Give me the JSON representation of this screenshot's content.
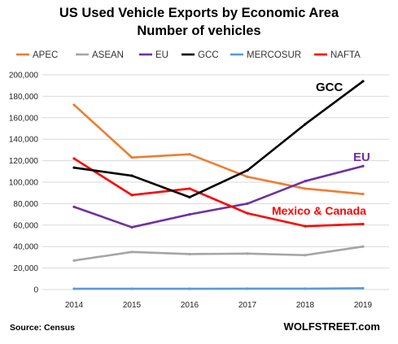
{
  "chart_data": {
    "type": "line",
    "title": "US Used Vehicle Exports by Economic Area",
    "subtitle": "Number of vehicles",
    "categories": [
      "2014",
      "2015",
      "2016",
      "2017",
      "2018",
      "2019"
    ],
    "ylim": [
      0,
      200000
    ],
    "yticks": [
      0,
      20000,
      40000,
      60000,
      80000,
      100000,
      120000,
      140000,
      160000,
      180000,
      200000
    ],
    "ytick_labels": [
      "0",
      "20,000",
      "40,000",
      "60,000",
      "80,000",
      "100,000",
      "120,000",
      "140,000",
      "160,000",
      "180,000",
      "200,000"
    ],
    "grid": true,
    "legend_position": "top",
    "series": [
      {
        "name": "APEC",
        "color": "#ED7D31",
        "values": [
          172000,
          123000,
          126000,
          105000,
          94000,
          89000
        ]
      },
      {
        "name": "ASEAN",
        "color": "#A5A5A5",
        "values": [
          27000,
          35000,
          33000,
          33500,
          32000,
          40000
        ]
      },
      {
        "name": "EU",
        "color": "#7030A0",
        "values": [
          77000,
          58000,
          70000,
          80000,
          101000,
          115000
        ]
      },
      {
        "name": "GCC",
        "color": "#000000",
        "values": [
          113500,
          106000,
          86000,
          111000,
          154000,
          194000
        ]
      },
      {
        "name": "MERCOSUR",
        "color": "#5B9BD5",
        "values": [
          700,
          700,
          700,
          800,
          800,
          1200
        ]
      },
      {
        "name": "NAFTA",
        "color": "#FF0000",
        "values": [
          122000,
          88000,
          94000,
          71000,
          59000,
          61000
        ]
      }
    ],
    "annotations": [
      {
        "text": "GCC",
        "color": "#000000"
      },
      {
        "text": "EU",
        "color": "#7030A0"
      },
      {
        "text": "Mexico & Canada",
        "color": "#FF0000"
      }
    ]
  },
  "footer": {
    "source": "Source: Census",
    "brand": "WOLFSTREET.com"
  }
}
